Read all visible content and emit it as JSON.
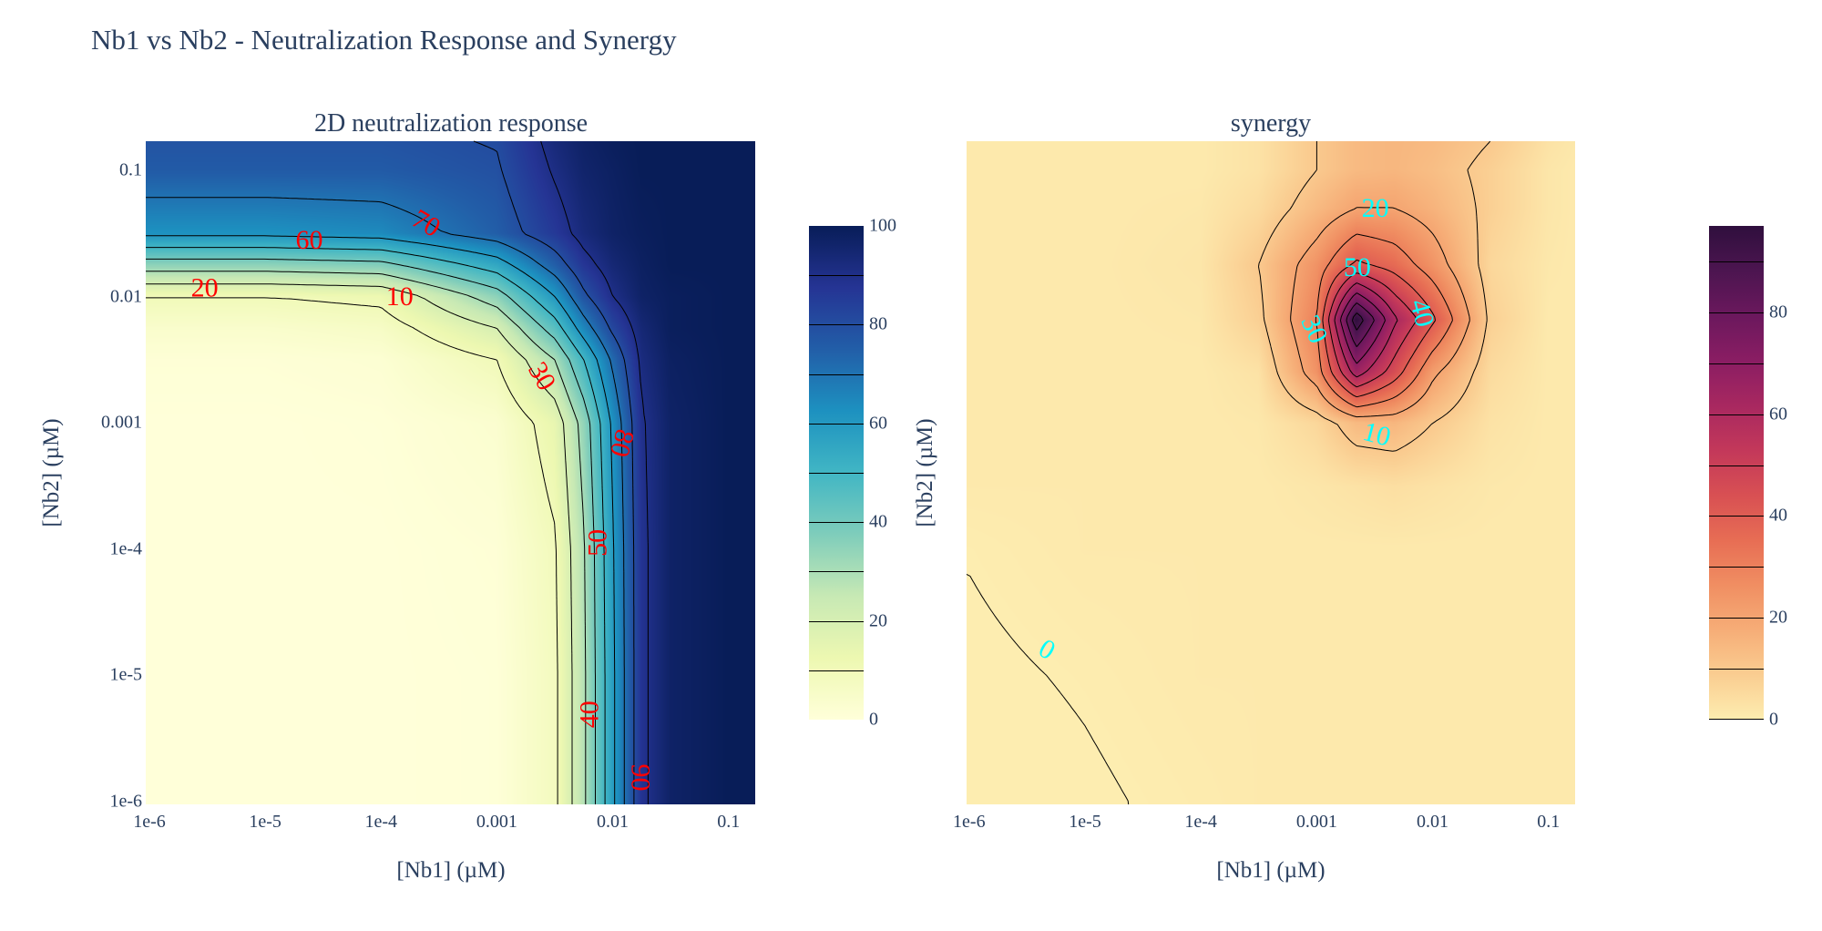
{
  "title": "Nb1 vs Nb2 - Neutralization Response and Synergy",
  "chart_data": [
    {
      "type": "heatmap",
      "title": "2D neutralization response",
      "xlabel": "[Nb1] (µM)",
      "ylabel": "[Nb2] (µM)",
      "x_scale": "log",
      "y_scale": "log",
      "xlim": [
        9.3e-07,
        0.17
      ],
      "ylim": [
        9.5e-07,
        0.17
      ],
      "x_ticks": [
        "1e-6",
        "1e-5",
        "1e-4",
        "0.001",
        "0.01",
        "0.1"
      ],
      "y_ticks": [
        "1e-6",
        "1e-5",
        "1e-4",
        "0.001",
        "0.01",
        "0.1"
      ],
      "x": [
        1e-06,
        1e-05,
        0.0001,
        0.001,
        0.00316,
        0.00562,
        0.01,
        0.0178,
        0.0316,
        0.1,
        0.17
      ],
      "y": [
        1e-06,
        1e-05,
        0.0001,
        0.001,
        0.00316,
        0.00562,
        0.01,
        0.0178,
        0.0316,
        0.1,
        0.17
      ],
      "z": [
        [
          0,
          0,
          0,
          0.5,
          8,
          28,
          58,
          88,
          97,
          100,
          100
        ],
        [
          0,
          0,
          0,
          0.5,
          8,
          28,
          58,
          88,
          97,
          100,
          100
        ],
        [
          0,
          0,
          0,
          1,
          9,
          29,
          59,
          88,
          97,
          100,
          100
        ],
        [
          0,
          0,
          0.5,
          3,
          14,
          34,
          62,
          89,
          97,
          100,
          100
        ],
        [
          1,
          1,
          2,
          10,
          30,
          50,
          72,
          92,
          98,
          100,
          100
        ],
        [
          4,
          4,
          6,
          20,
          45,
          65,
          82,
          94,
          99,
          100,
          100
        ],
        [
          10,
          10,
          12,
          35,
          60,
          78,
          90,
          97,
          99,
          100,
          100
        ],
        [
          35,
          35,
          37,
          55,
          75,
          87,
          94,
          98,
          100,
          100,
          100
        ],
        [
          62,
          62,
          64,
          75,
          86,
          93,
          97,
          99,
          100,
          100,
          100
        ],
        [
          76,
          76,
          76,
          79,
          91,
          96,
          98,
          100,
          100,
          100,
          100
        ],
        [
          78,
          78,
          78,
          80.5,
          93,
          97,
          99,
          100,
          100,
          100,
          100
        ]
      ],
      "colorscale": "YlGnBu (reversed)",
      "colors": [
        "#ffffd9",
        "#edf8b1",
        "#c7e9b4",
        "#7fcdbb",
        "#41b6c4",
        "#1d91c0",
        "#225ea8",
        "#253494",
        "#081d58"
      ],
      "zlim": [
        0,
        100
      ],
      "colorbar_ticks": [
        "0",
        "20",
        "40",
        "60",
        "80",
        "100"
      ],
      "contour_levels": [
        10,
        20,
        30,
        40,
        50,
        60,
        70,
        80,
        90
      ],
      "contour_line_color": "#000000",
      "label_color": "#ff0000",
      "contour_labels": [
        {
          "text": "70",
          "x": 0.000245,
          "y": 0.038
        },
        {
          "text": "60",
          "x": 2.4e-05,
          "y": 0.028
        },
        {
          "text": "20",
          "x": 3e-06,
          "y": 0.0117
        },
        {
          "text": "10",
          "x": 0.000145,
          "y": 0.01
        },
        {
          "text": "30",
          "x": 0.00245,
          "y": 0.00234
        },
        {
          "text": "80",
          "x": 0.012,
          "y": 0.00069
        },
        {
          "text": "50",
          "x": 0.0074,
          "y": 0.000112
        },
        {
          "text": "40",
          "x": 0.0063,
          "y": 4.9e-06
        },
        {
          "text": "90",
          "x": 0.0174,
          "y": 1.55e-06
        }
      ]
    },
    {
      "type": "heatmap",
      "title": "synergy",
      "xlabel": "[Nb1] (µM)",
      "ylabel": "[Nb2] (µM)",
      "x_scale": "log",
      "y_scale": "log",
      "xlim": [
        9.5e-07,
        0.17
      ],
      "ylim": [
        9.5e-07,
        0.17
      ],
      "x_ticks": [
        "1e-6",
        "1e-5",
        "1e-4",
        "0.001",
        "0.01",
        "0.1"
      ],
      "y_ticks": [],
      "x": [
        1e-06,
        1e-05,
        0.0001,
        0.000316,
        0.001,
        0.00219,
        0.00468,
        0.01,
        0.0316,
        0.1,
        0.17
      ],
      "y": [
        1e-06,
        1e-05,
        0.0001,
        0.000316,
        0.001,
        0.00251,
        0.0066,
        0.0178,
        0.05,
        0.1,
        0.17
      ],
      "z": [
        [
          -1,
          -0.3,
          0.5,
          1,
          1,
          1,
          1,
          1,
          1,
          1,
          1
        ],
        [
          -0.4,
          0.2,
          1,
          1,
          1,
          1,
          1,
          1,
          1,
          1,
          1
        ],
        [
          0.1,
          1,
          1,
          1,
          1,
          1,
          1,
          1,
          1,
          1,
          1
        ],
        [
          1,
          1,
          1,
          1,
          2,
          3,
          4,
          3,
          1.5,
          1,
          1
        ],
        [
          1,
          1,
          1,
          1.5,
          6,
          14,
          15,
          10,
          3,
          1,
          1
        ],
        [
          1,
          1,
          1,
          3,
          25,
          65,
          45,
          22,
          5,
          1,
          1
        ],
        [
          1,
          1,
          1.5,
          8,
          30,
          97,
          62,
          42,
          8,
          1,
          1
        ],
        [
          1,
          1,
          2,
          10,
          25,
          42,
          36,
          25,
          6,
          1.5,
          1
        ],
        [
          1,
          1,
          1.5,
          5,
          14,
          20,
          20,
          16,
          8,
          2,
          1
        ],
        [
          1,
          1,
          1,
          3,
          10,
          14,
          15,
          13,
          8,
          2,
          1
        ],
        [
          1,
          1,
          1,
          3,
          10,
          14,
          15,
          14,
          10,
          3,
          1.5
        ]
      ],
      "colorscale": "matter",
      "colors": [
        "#fdedb0",
        "#facd91",
        "#f6ad77",
        "#f08e62",
        "#e76d54",
        "#d85053",
        "#c3385a",
        "#a82860",
        "#8a1d63",
        "#6b185d",
        "#4c1550",
        "#2f0f3d"
      ],
      "zlim": [
        0,
        97
      ],
      "colorbar_ticks": [
        "0",
        "20",
        "40",
        "60",
        "80"
      ],
      "contour_levels": [
        0,
        10,
        20,
        30,
        40,
        50,
        60,
        70,
        80,
        90
      ],
      "contour_line_color": "#000000",
      "label_color": "#00ffff",
      "contour_labels": [
        {
          "text": "20",
          "x": 0.0032,
          "y": 0.05
        },
        {
          "text": "50",
          "x": 0.00224,
          "y": 0.017
        },
        {
          "text": "40",
          "x": 0.0081,
          "y": 0.0074
        },
        {
          "text": "30",
          "x": 0.00095,
          "y": 0.0055
        },
        {
          "text": "10",
          "x": 0.0033,
          "y": 0.00081
        },
        {
          "text": "0",
          "x": 4.7e-06,
          "y": 1.6e-05
        }
      ]
    }
  ]
}
